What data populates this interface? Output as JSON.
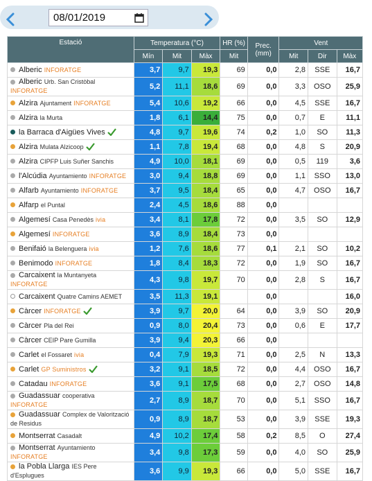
{
  "date": "08/01/2019",
  "table": {
    "columns": {
      "station": "Estació",
      "temperature": "Temperatura (°C)",
      "humidity": "HR (%)",
      "precipitation": "Prec. (mm)",
      "wind": "Vent"
    },
    "temperature_sub": [
      "Mín",
      "Mit",
      "Màx"
    ],
    "humidity_sub": "Mit",
    "wind_sub": [
      "Mit",
      "Dir",
      "Màx"
    ],
    "rows": [
      {
        "dot": "#aaaaaa",
        "name": "Alberic",
        "tag": "INFORATGE",
        "cells": [
          "3,7",
          "9,7",
          "19,3",
          "69",
          "0,0",
          "2,8",
          "SSE",
          "16,7"
        ]
      },
      {
        "dot": "#aaaaaa",
        "name": "Alberic",
        "sub": "Urb. San Cristòbal",
        "tag": "INFORATGE",
        "cells": [
          "5,2",
          "11,1",
          "18,6",
          "69",
          "0,0",
          "3,3",
          "OSO",
          "25,9"
        ]
      },
      {
        "dot": "#e8a33a",
        "name": "Alzira",
        "sub": "Ajuntament",
        "tag": "INFORATGE",
        "cells": [
          "5,4",
          "10,6",
          "19,2",
          "66",
          "0,0",
          "4,5",
          "SSE",
          "16,7"
        ]
      },
      {
        "dot": "#aaaaaa",
        "name": "Alzira",
        "sub": "la Murta",
        "cells": [
          "1,8",
          "6,1",
          "14,4",
          "75",
          "0,0",
          "0,7",
          "E",
          "11,1"
        ]
      },
      {
        "dot": "#1a5c5c",
        "name": "la Barraca d'Aigües Vives",
        "check": true,
        "cells": [
          "4,8",
          "9,7",
          "19,6",
          "74",
          "0,2",
          "1,0",
          "SO",
          "11,3"
        ]
      },
      {
        "dot": "#e8a33a",
        "name": "Alzira",
        "sub": "Mulata Alzicoop",
        "check": true,
        "cells": [
          "1,1",
          "7,8",
          "19,4",
          "68",
          "0,0",
          "4,8",
          "S",
          "20,9"
        ]
      },
      {
        "dot": "#aaaaaa",
        "name": "Alzira",
        "sub": "CIPFP Luis Suñer Sanchis",
        "cells": [
          "4,9",
          "10,0",
          "18,1",
          "69",
          "0,0",
          "0,5",
          "119",
          "3,6"
        ]
      },
      {
        "dot": "#aaaaaa",
        "name": "l'Alcúdia",
        "sub": "Ayuntamiento",
        "tag": "INFORATGE",
        "cells": [
          "3,0",
          "9,4",
          "18,8",
          "69",
          "0,0",
          "1,1",
          "SSO",
          "13,0"
        ]
      },
      {
        "dot": "#aaaaaa",
        "name": "Alfarb",
        "sub": "Ayuntamiento",
        "tag": "INFORATGE",
        "cells": [
          "3,7",
          "9,5",
          "18,4",
          "65",
          "0,0",
          "4,7",
          "OSO",
          "16,7"
        ]
      },
      {
        "dot": "#e8a33a",
        "name": "Alfarp",
        "sub": "el Puntal",
        "cells": [
          "2,4",
          "4,5",
          "18,6",
          "88",
          "0,0",
          null,
          null,
          null
        ]
      },
      {
        "dot": "#aaaaaa",
        "name": "Algemesí",
        "sub": "Casa Penedès",
        "tag": "ivia",
        "cells": [
          "3,4",
          "8,1",
          "17,8",
          "72",
          "0,0",
          "3,5",
          "SO",
          "12,9"
        ]
      },
      {
        "dot": "#e8a33a",
        "name": "Algemesí",
        "tag": "INFORATGE",
        "cells": [
          "3,6",
          "8,9",
          "18,4",
          "73",
          "0,0",
          null,
          null,
          null
        ]
      },
      {
        "dot": "#aaaaaa",
        "name": "Benifaió",
        "sub": "la Belenguera",
        "tag": "ivia",
        "cells": [
          "1,2",
          "7,6",
          "18,6",
          "77",
          "0,1",
          "2,1",
          "SO",
          "10,2"
        ]
      },
      {
        "dot": "#aaaaaa",
        "name": "Benimodo",
        "tag": "INFORATGE",
        "cells": [
          "1,8",
          "8,4",
          "18,3",
          "72",
          "0,0",
          "1,9",
          "SO",
          "16,7"
        ]
      },
      {
        "dot": "#aaaaaa",
        "name": "Carcaixent",
        "sub": "la Muntanyeta",
        "tag": "INFORATGE",
        "cells": [
          "4,3",
          "9,8",
          "19,7",
          "70",
          "0,0",
          "2,8",
          "S",
          "16,7"
        ]
      },
      {
        "dot": "#ffffff",
        "name": "Carcaixent",
        "sub": "Quatre Camins AEMET",
        "cells": [
          "3,5",
          "11,3",
          "19,1",
          null,
          "0,0",
          null,
          null,
          "16,0"
        ]
      },
      {
        "dot": "#e8a33a",
        "name": "Càrcer",
        "tag": "INFORATGE",
        "check": true,
        "cells": [
          "3,9",
          "9,7",
          "20,0",
          "64",
          "0,0",
          "3,9",
          "SO",
          "20,9"
        ]
      },
      {
        "dot": "#aaaaaa",
        "name": "Càrcer",
        "sub": "Pla del Rei",
        "cells": [
          "0,9",
          "8,0",
          "20,4",
          "73",
          "0,0",
          "0,6",
          "E",
          "17,7"
        ]
      },
      {
        "dot": "#aaaaaa",
        "name": "Càrcer",
        "sub": "CEIP Pare Gumilla",
        "cells": [
          "3,9",
          "9,4",
          "20,3",
          "66",
          "0,0",
          null,
          null,
          null
        ]
      },
      {
        "dot": "#aaaaaa",
        "name": "Carlet",
        "sub": "el Fossaret",
        "tag": "ivia",
        "cells": [
          "0,4",
          "7,9",
          "19,3",
          "71",
          "0,0",
          "2,5",
          "N",
          "13,3"
        ]
      },
      {
        "dot": "#e8a33a",
        "name": "Carlet",
        "tag": "GP Suministros",
        "check": true,
        "cells": [
          "3,2",
          "9,1",
          "18,5",
          "72",
          "0,0",
          "4,4",
          "OSO",
          "16,7"
        ]
      },
      {
        "dot": "#aaaaaa",
        "name": "Catadau",
        "tag": "INFORATGE",
        "cells": [
          "3,6",
          "9,1",
          "17,5",
          "68",
          "0,0",
          "2,7",
          "OSO",
          "14,8"
        ]
      },
      {
        "dot": "#aaaaaa",
        "name": "Guadassuar",
        "sub": "cooperativa",
        "tag": "INFORATGE",
        "cells": [
          "2,7",
          "8,9",
          "18,7",
          "70",
          "0,0",
          "5,1",
          "SSO",
          "16,7"
        ]
      },
      {
        "dot": "#e8a33a",
        "name": "Guadassuar",
        "sub": "Complex de Valorització de Residus",
        "cells": [
          "0,9",
          "8,9",
          "18,7",
          "53",
          "0,0",
          "3,9",
          "SSE",
          "19,3"
        ]
      },
      {
        "dot": "#e8a33a",
        "name": "Montserrat",
        "sub": "Casadalt",
        "cells": [
          "4,9",
          "10,2",
          "17,4",
          "58",
          "0,2",
          "8,5",
          "O",
          "27,4"
        ]
      },
      {
        "dot": "#aaaaaa",
        "name": "Montserrat",
        "sub": "Ayuntamiento",
        "tag": "INFORATGE",
        "cells": [
          "3,4",
          "9,8",
          "17,3",
          "59",
          "0,0",
          "4,0",
          "SO",
          "25,9"
        ]
      },
      {
        "dot": "#e8a33a",
        "name": "la Pobla Llarga",
        "sub": "IES Pere d'Esplugues",
        "cells": [
          "3,6",
          "9,9",
          "19,3",
          "66",
          "0,0",
          "5,0",
          "SSE",
          "16,7"
        ]
      }
    ]
  }
}
